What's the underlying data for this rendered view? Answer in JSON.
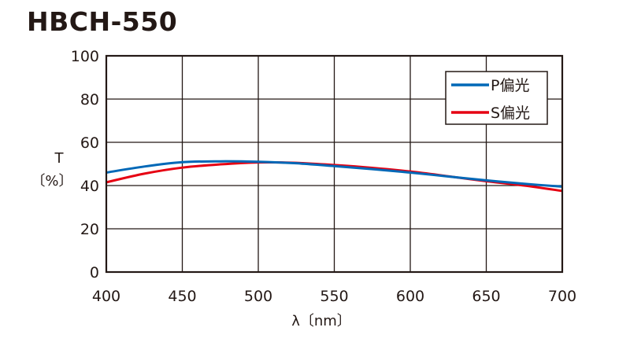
{
  "chart_data": {
    "type": "line",
    "title": "HBCH-550",
    "xlabel": "λ〔nm〕",
    "ylabel_lines": [
      "T",
      "〔%〕"
    ],
    "xlim": [
      400,
      700
    ],
    "ylim": [
      0,
      100
    ],
    "xticks": [
      400,
      450,
      500,
      550,
      600,
      650,
      700
    ],
    "yticks": [
      0,
      20,
      40,
      60,
      80,
      100
    ],
    "grid": true,
    "legend_position": "top-right",
    "series": [
      {
        "name": "P偏光",
        "color": "#0068b7",
        "x": [
          400,
          425,
          450,
          475,
          500,
          525,
          550,
          575,
          600,
          625,
          650,
          675,
          700
        ],
        "y": [
          46.0,
          48.8,
          50.8,
          51.2,
          51.0,
          50.3,
          49.0,
          47.6,
          46.0,
          44.2,
          42.4,
          40.8,
          39.5
        ]
      },
      {
        "name": "S偏光",
        "color": "#e60012",
        "x": [
          400,
          425,
          450,
          475,
          500,
          525,
          550,
          575,
          600,
          625,
          650,
          675,
          700
        ],
        "y": [
          41.5,
          45.5,
          48.3,
          49.8,
          50.7,
          50.5,
          49.5,
          48.2,
          46.5,
          44.3,
          42.0,
          40.0,
          37.5
        ]
      }
    ]
  }
}
